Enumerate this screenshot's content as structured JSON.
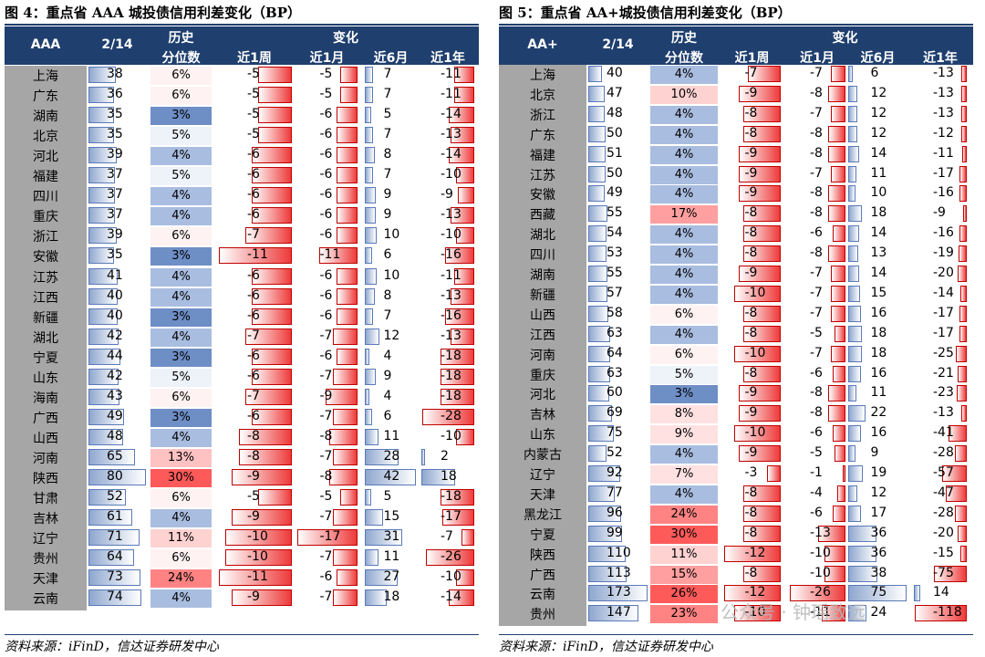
{
  "tables": [
    {
      "title": "图 4：重点省 AAA 城投债信用利差变化（BP）",
      "header": {
        "rating": "AAA",
        "date": "2/14",
        "hist_1": "历史",
        "hist_2": "分位数",
        "change": "变化",
        "w1": "近1周",
        "m1": "近1月",
        "m6": "近6月",
        "y1": "近1年"
      },
      "source": "资料来源：iFinD，信达证券研发中心",
      "rows": [
        {
          "prov": "上海",
          "val": 38,
          "pct": "6%",
          "w1": -5,
          "m1": -5,
          "m6": 7,
          "y1": -11
        },
        {
          "prov": "广东",
          "val": 36,
          "pct": "6%",
          "w1": -5,
          "m1": -5,
          "m6": 7,
          "y1": -11
        },
        {
          "prov": "湖南",
          "val": 35,
          "pct": "3%",
          "w1": -5,
          "m1": -6,
          "m6": 5,
          "y1": -14
        },
        {
          "prov": "北京",
          "val": 35,
          "pct": "5%",
          "w1": -5,
          "m1": -6,
          "m6": 7,
          "y1": -13
        },
        {
          "prov": "河北",
          "val": 39,
          "pct": "4%",
          "w1": -6,
          "m1": -6,
          "m6": 8,
          "y1": -14
        },
        {
          "prov": "福建",
          "val": 37,
          "pct": "5%",
          "w1": -6,
          "m1": -6,
          "m6": 7,
          "y1": -10
        },
        {
          "prov": "四川",
          "val": 37,
          "pct": "4%",
          "w1": -6,
          "m1": -6,
          "m6": 9,
          "y1": -9
        },
        {
          "prov": "重庆",
          "val": 37,
          "pct": "4%",
          "w1": -6,
          "m1": -6,
          "m6": 9,
          "y1": -13
        },
        {
          "prov": "浙江",
          "val": 39,
          "pct": "6%",
          "w1": -7,
          "m1": -6,
          "m6": 10,
          "y1": -10
        },
        {
          "prov": "安徽",
          "val": 35,
          "pct": "3%",
          "w1": -11,
          "m1": -11,
          "m6": 6,
          "y1": -16
        },
        {
          "prov": "江苏",
          "val": 41,
          "pct": "4%",
          "w1": -6,
          "m1": -6,
          "m6": 10,
          "y1": -11
        },
        {
          "prov": "江西",
          "val": 40,
          "pct": "4%",
          "w1": -6,
          "m1": -6,
          "m6": 8,
          "y1": -13
        },
        {
          "prov": "新疆",
          "val": 40,
          "pct": "3%",
          "w1": -6,
          "m1": -6,
          "m6": 7,
          "y1": -16
        },
        {
          "prov": "湖北",
          "val": 42,
          "pct": "4%",
          "w1": -7,
          "m1": -7,
          "m6": 12,
          "y1": -13
        },
        {
          "prov": "宁夏",
          "val": 44,
          "pct": "3%",
          "w1": -6,
          "m1": -6,
          "m6": 4,
          "y1": -18
        },
        {
          "prov": "山东",
          "val": 42,
          "pct": "5%",
          "w1": -6,
          "m1": -7,
          "m6": 9,
          "y1": -18
        },
        {
          "prov": "海南",
          "val": 43,
          "pct": "6%",
          "w1": -7,
          "m1": -9,
          "m6": 4,
          "y1": -18
        },
        {
          "prov": "广西",
          "val": 49,
          "pct": "3%",
          "w1": -6,
          "m1": -7,
          "m6": 6,
          "y1": -28
        },
        {
          "prov": "山西",
          "val": 48,
          "pct": "4%",
          "w1": -8,
          "m1": -8,
          "m6": 11,
          "y1": -10
        },
        {
          "prov": "河南",
          "val": 65,
          "pct": "13%",
          "w1": -8,
          "m1": -7,
          "m6": 28,
          "y1": 2
        },
        {
          "prov": "陕西",
          "val": 80,
          "pct": "30%",
          "w1": -9,
          "m1": -8,
          "m6": 42,
          "y1": 18
        },
        {
          "prov": "甘肃",
          "val": 52,
          "pct": "6%",
          "w1": -5,
          "m1": -5,
          "m6": 5,
          "y1": -18
        },
        {
          "prov": "吉林",
          "val": 61,
          "pct": "4%",
          "w1": -9,
          "m1": -7,
          "m6": 15,
          "y1": -17
        },
        {
          "prov": "辽宁",
          "val": 71,
          "pct": "11%",
          "w1": -10,
          "m1": -17,
          "m6": 31,
          "y1": -7
        },
        {
          "prov": "贵州",
          "val": 64,
          "pct": "6%",
          "w1": -10,
          "m1": -7,
          "m6": 11,
          "y1": -26
        },
        {
          "prov": "天津",
          "val": 73,
          "pct": "24%",
          "w1": -11,
          "m1": -6,
          "m6": 27,
          "y1": -10
        },
        {
          "prov": "云南",
          "val": 74,
          "pct": "4%",
          "w1": -9,
          "m1": -7,
          "m6": 18,
          "y1": -14
        }
      ]
    },
    {
      "title": "图 5：重点省 AA+城投债信用利差变化（BP）",
      "header": {
        "rating": "AA+",
        "date": "2/14",
        "hist_1": "历史",
        "hist_2": "分位数",
        "change": "变化",
        "w1": "近1周",
        "m1": "近1月",
        "m6": "近6月",
        "y1": "近1年"
      },
      "source": "资料来源：iFinD，信达证券研发中心",
      "rows": [
        {
          "prov": "上海",
          "val": 40,
          "pct": "4%",
          "w1": -7,
          "m1": -7,
          "m6": 6,
          "y1": -13
        },
        {
          "prov": "北京",
          "val": 47,
          "pct": "10%",
          "w1": -9,
          "m1": -8,
          "m6": 12,
          "y1": -13
        },
        {
          "prov": "浙江",
          "val": 48,
          "pct": "4%",
          "w1": -8,
          "m1": -7,
          "m6": 12,
          "y1": -13
        },
        {
          "prov": "广东",
          "val": 50,
          "pct": "4%",
          "w1": -8,
          "m1": -8,
          "m6": 12,
          "y1": -12
        },
        {
          "prov": "福建",
          "val": 51,
          "pct": "4%",
          "w1": -9,
          "m1": -8,
          "m6": 14,
          "y1": -11
        },
        {
          "prov": "江苏",
          "val": 50,
          "pct": "4%",
          "w1": -9,
          "m1": -7,
          "m6": 11,
          "y1": -17
        },
        {
          "prov": "安徽",
          "val": 49,
          "pct": "4%",
          "w1": -9,
          "m1": -8,
          "m6": 10,
          "y1": -16
        },
        {
          "prov": "西藏",
          "val": 55,
          "pct": "17%",
          "w1": -8,
          "m1": -8,
          "m6": 18,
          "y1": -9
        },
        {
          "prov": "湖北",
          "val": 54,
          "pct": "4%",
          "w1": -8,
          "m1": -6,
          "m6": 14,
          "y1": -16
        },
        {
          "prov": "四川",
          "val": 53,
          "pct": "4%",
          "w1": -8,
          "m1": -8,
          "m6": 13,
          "y1": -19
        },
        {
          "prov": "湖南",
          "val": 55,
          "pct": "4%",
          "w1": -9,
          "m1": -7,
          "m6": 14,
          "y1": -20
        },
        {
          "prov": "新疆",
          "val": 57,
          "pct": "4%",
          "w1": -10,
          "m1": -7,
          "m6": 15,
          "y1": -14
        },
        {
          "prov": "山西",
          "val": 58,
          "pct": "6%",
          "w1": -8,
          "m1": -7,
          "m6": 16,
          "y1": -17
        },
        {
          "prov": "江西",
          "val": 63,
          "pct": "4%",
          "w1": -8,
          "m1": -5,
          "m6": 18,
          "y1": -17
        },
        {
          "prov": "河南",
          "val": 64,
          "pct": "6%",
          "w1": -10,
          "m1": -7,
          "m6": 18,
          "y1": -25
        },
        {
          "prov": "重庆",
          "val": 63,
          "pct": "5%",
          "w1": -8,
          "m1": -6,
          "m6": 16,
          "y1": -21
        },
        {
          "prov": "河北",
          "val": 60,
          "pct": "3%",
          "w1": -9,
          "m1": -8,
          "m6": 11,
          "y1": -23
        },
        {
          "prov": "吉林",
          "val": 69,
          "pct": "8%",
          "w1": -9,
          "m1": -8,
          "m6": 22,
          "y1": -13
        },
        {
          "prov": "山东",
          "val": 75,
          "pct": "9%",
          "w1": -10,
          "m1": -6,
          "m6": 16,
          "y1": -41
        },
        {
          "prov": "内蒙古",
          "val": 52,
          "pct": "4%",
          "w1": -9,
          "m1": -5,
          "m6": 9,
          "y1": -28
        },
        {
          "prov": "辽宁",
          "val": 92,
          "pct": "7%",
          "w1": -3,
          "m1": -1,
          "m6": 19,
          "y1": -57
        },
        {
          "prov": "天津",
          "val": 77,
          "pct": "4%",
          "w1": -8,
          "m1": -4,
          "m6": 12,
          "y1": -47
        },
        {
          "prov": "黑龙江",
          "val": 96,
          "pct": "24%",
          "w1": -8,
          "m1": -6,
          "m6": 17,
          "y1": -28
        },
        {
          "prov": "宁夏",
          "val": 99,
          "pct": "30%",
          "w1": -8,
          "m1": -13,
          "m6": 36,
          "y1": -20
        },
        {
          "prov": "陕西",
          "val": 110,
          "pct": "11%",
          "w1": -12,
          "m1": -10,
          "m6": 36,
          "y1": -15
        },
        {
          "prov": "广西",
          "val": 113,
          "pct": "15%",
          "w1": -8,
          "m1": -10,
          "m6": 38,
          "y1": -75
        },
        {
          "prov": "云南",
          "val": 173,
          "pct": "26%",
          "w1": -12,
          "m1": -26,
          "m6": 75,
          "y1": 14
        },
        {
          "prov": "贵州",
          "val": 147,
          "pct": "23%",
          "w1": -10,
          "m1": -11,
          "m6": 24,
          "y1": -118
        }
      ]
    }
  ],
  "chart_data": [
    {
      "type": "table",
      "title": "图 4：重点省 AAA 城投债信用利差变化（BP）",
      "columns": [
        "AAA",
        "2/14",
        "历史分位数",
        "近1周",
        "近1月",
        "近6月",
        "近1年"
      ]
    },
    {
      "type": "table",
      "title": "图 5：重点省 AA+城投债信用利差变化（BP）",
      "columns": [
        "AA+",
        "2/14",
        "历史分位数",
        "近1周",
        "近1月",
        "近6月",
        "近1年"
      ]
    }
  ],
  "colors": {
    "header": "#1f3f6e",
    "label_bg": "#a6a6a6",
    "bar_blue": "#8fa7cf",
    "bar_red": "#ee3a3a"
  },
  "watermark": "公众号 · 钟瑶致远"
}
